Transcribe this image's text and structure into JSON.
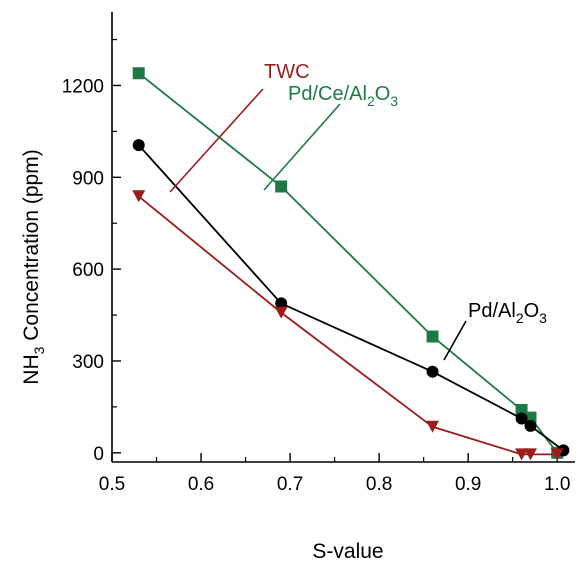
{
  "chart_data": {
    "type": "line",
    "x_label": "S-value",
    "y_label": {
      "prefix": "NH",
      "sub": "3",
      "suffix": " Concentration (ppm)"
    },
    "xlim": [
      0.5,
      1.02
    ],
    "ylim": [
      -30,
      1440
    ],
    "xticks": [
      "0.5",
      "0.6",
      "0.7",
      "0.8",
      "0.9",
      "1.0"
    ],
    "yticks": [
      "0",
      "300",
      "600",
      "900",
      "1200"
    ],
    "series": [
      {
        "name": "Pd/Ce/Al2O3",
        "label_parts": [
          {
            "t": "Pd/Ce/Al"
          },
          {
            "t": "2",
            "sub": true
          },
          {
            "t": "O"
          },
          {
            "t": "3",
            "sub": true
          }
        ],
        "color": "#1e7a45",
        "marker": "square",
        "x": [
          0.53,
          0.69,
          0.86,
          0.96,
          0.97,
          1.0
        ],
        "y": [
          1240,
          870,
          380,
          140,
          115,
          0
        ]
      },
      {
        "name": "Pd/Al2O3",
        "label_parts": [
          {
            "t": "Pd/Al"
          },
          {
            "t": "2",
            "sub": true
          },
          {
            "t": "O"
          },
          {
            "t": "3",
            "sub": true
          }
        ],
        "color": "#000000",
        "marker": "circle",
        "x": [
          0.53,
          0.69,
          0.86,
          0.96,
          0.97,
          1.007
        ],
        "y": [
          1005,
          488,
          265,
          112,
          88,
          8
        ]
      },
      {
        "name": "TWC",
        "label_parts": [
          {
            "t": "TWC"
          }
        ],
        "color": "#9c1c1c",
        "marker": "triangle-down",
        "x": [
          0.53,
          0.69,
          0.86,
          0.96,
          0.97,
          1.0
        ],
        "y": [
          838,
          458,
          85,
          -5,
          -5,
          -5
        ]
      }
    ]
  }
}
